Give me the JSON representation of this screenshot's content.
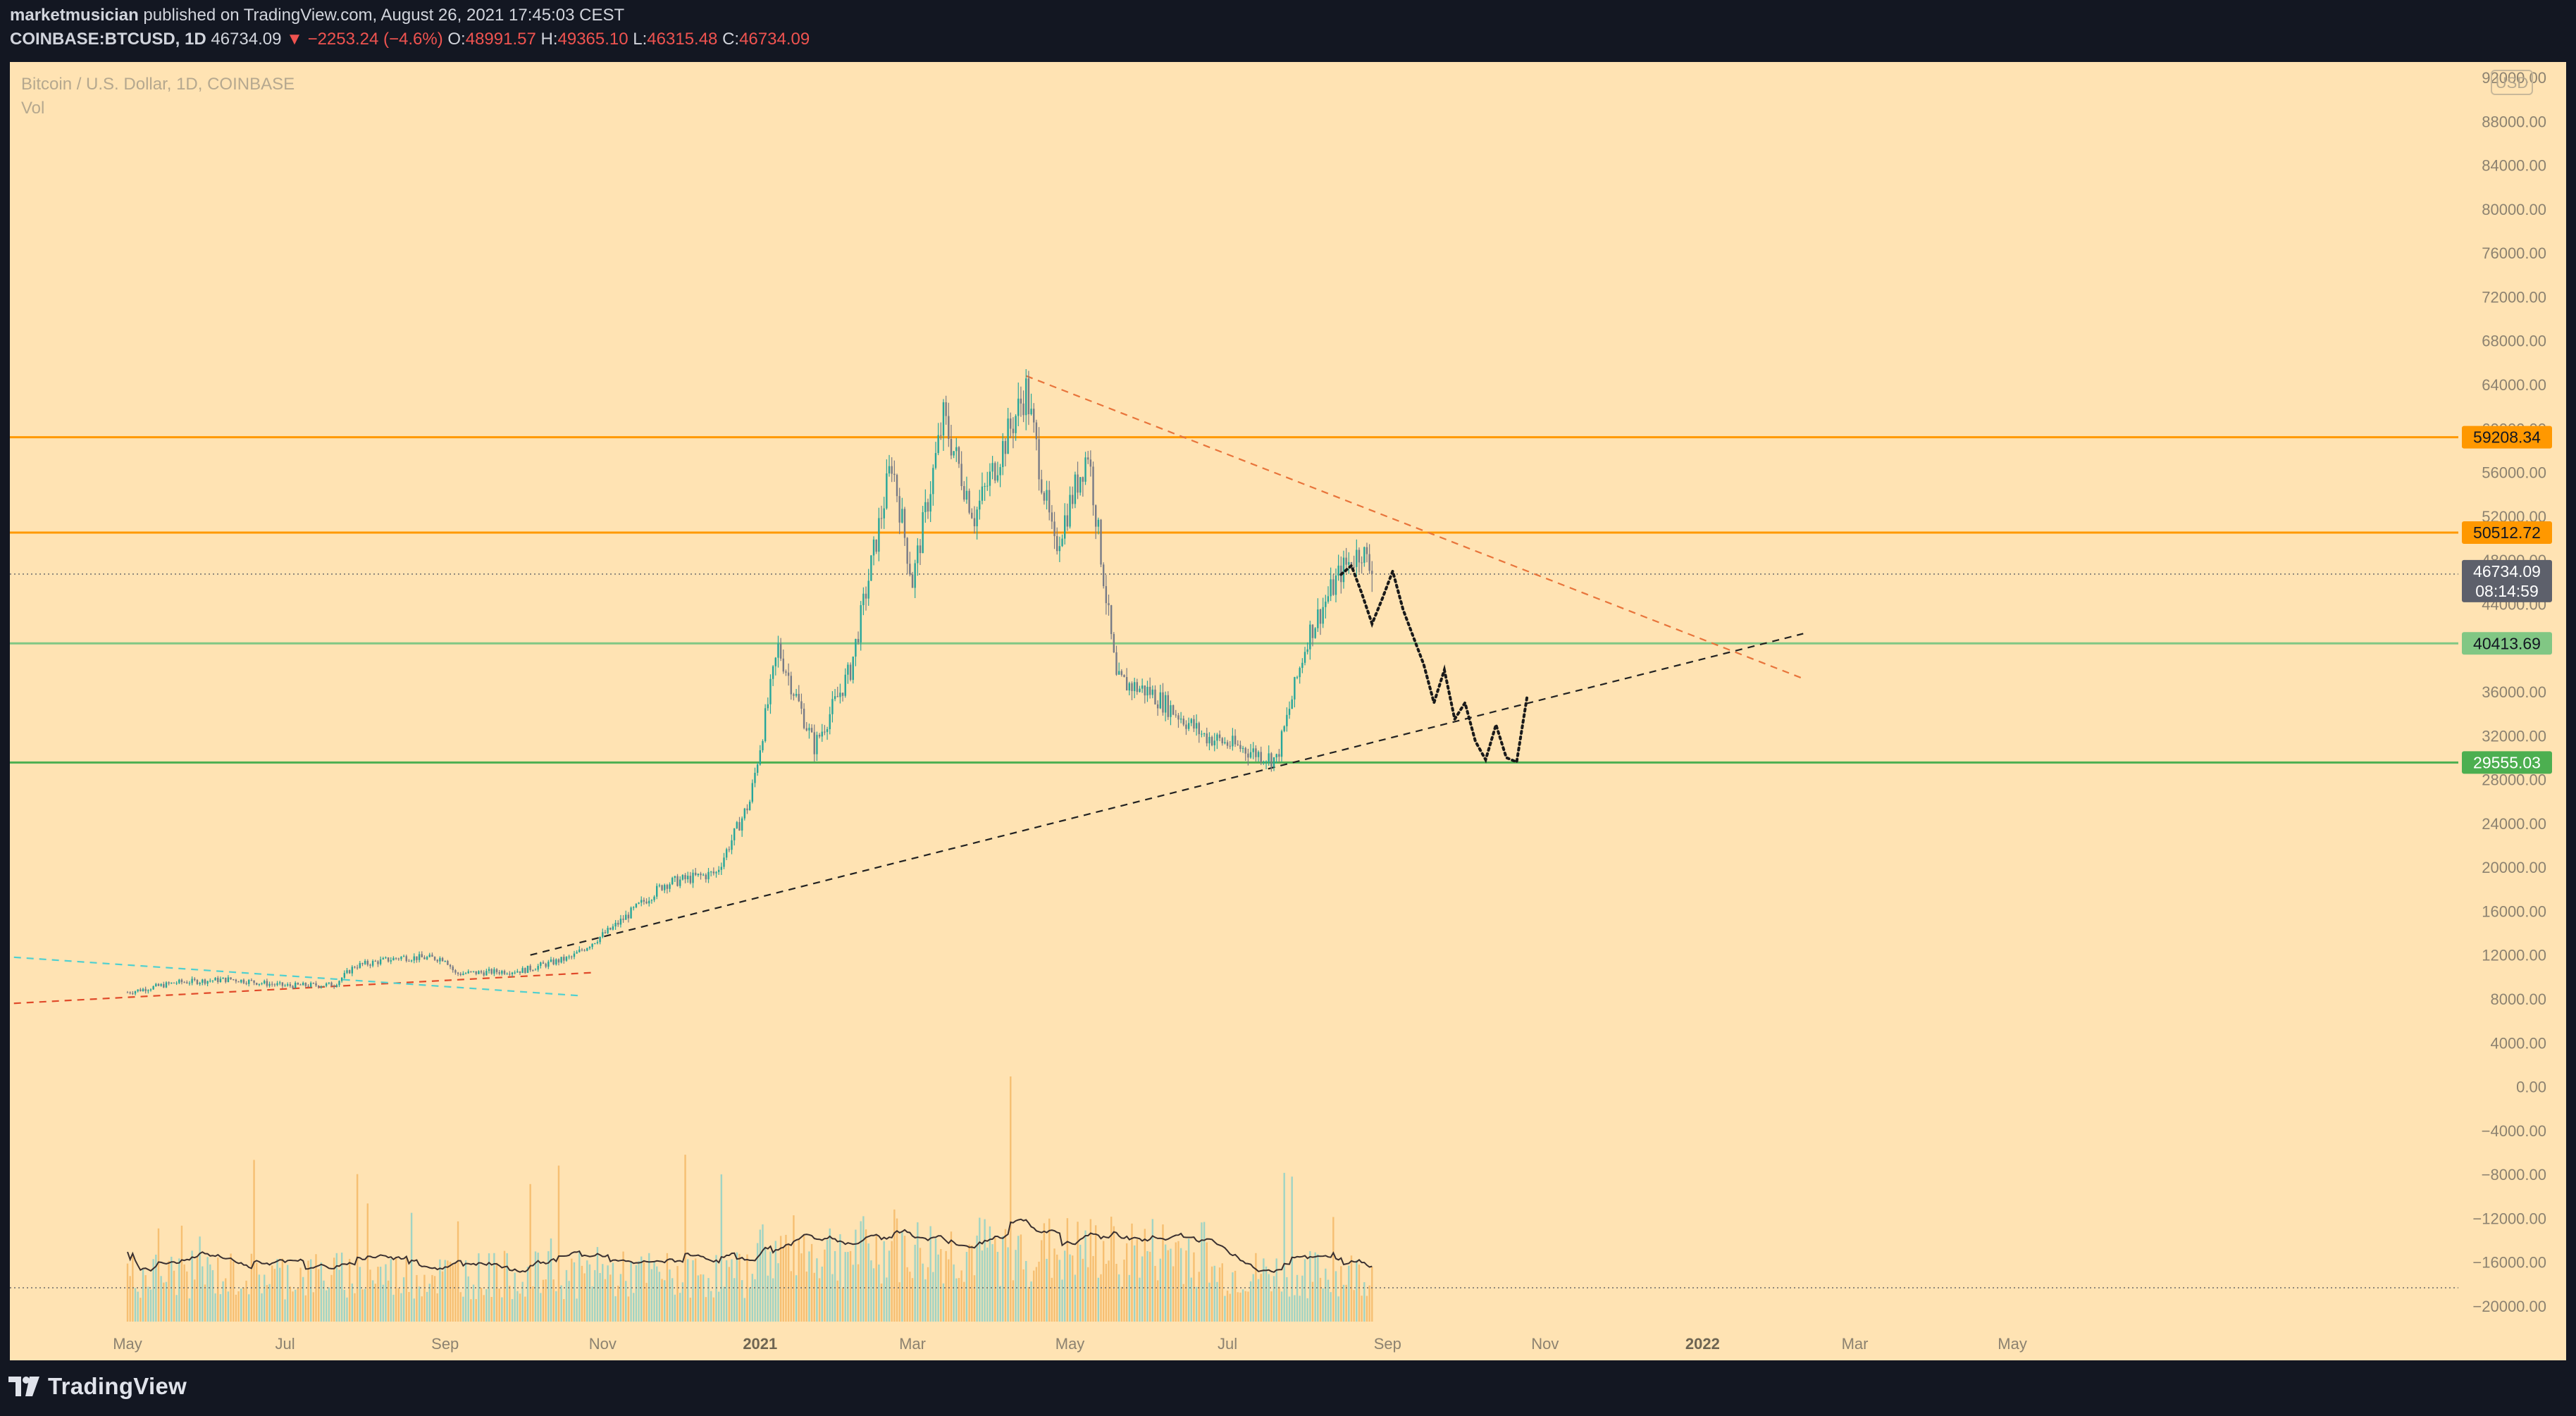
{
  "header": {
    "author": "marketmusician",
    "published": " published on TradingView.com, August 26, 2021 17:45:03 CEST",
    "symbol": "COINBASE:BTCUSD, 1D",
    "last": "46734.09",
    "change": "▼ −2253.24 (−4.6%)",
    "open_label": "O:",
    "open": "48991.57",
    "high_label": "H:",
    "high": "49365.10",
    "low_label": "L:",
    "low": "46315.48",
    "close_label": "C:",
    "close": "46734.09"
  },
  "legend": {
    "title": "Bitcoin / U.S. Dollar, 1D, COINBASE",
    "volume": "Vol"
  },
  "price_axis": {
    "currency_badge": "USD",
    "ticks": [
      "92000.00",
      "88000.00",
      "84000.00",
      "80000.00",
      "76000.00",
      "72000.00",
      "68000.00",
      "64000.00",
      "60000.00",
      "56000.00",
      "52000.00",
      "48000.00",
      "44000.00",
      "40000.00",
      "36000.00",
      "32000.00",
      "28000.00",
      "24000.00",
      "20000.00",
      "16000.00",
      "12000.00",
      "8000.00",
      "4000.00",
      "0.00",
      "−4000.00",
      "−8000.00",
      "−12000.00",
      "−16000.00",
      "−20000.00"
    ],
    "tick_values": [
      92000,
      88000,
      84000,
      80000,
      76000,
      72000,
      68000,
      64000,
      60000,
      56000,
      52000,
      48000,
      44000,
      40000,
      36000,
      32000,
      28000,
      24000,
      20000,
      16000,
      12000,
      8000,
      4000,
      0,
      -4000,
      -8000,
      -12000,
      -16000,
      -20000
    ]
  },
  "time_axis": {
    "ticks": [
      "May",
      "Jul",
      "Sep",
      "Nov",
      "2021",
      "Mar",
      "May",
      "Jul",
      "Sep",
      "Nov",
      "2022",
      "Mar",
      "May"
    ],
    "tick_days": [
      0,
      61,
      123,
      184,
      245,
      304,
      365,
      426,
      488,
      549,
      610,
      669,
      730
    ],
    "bold": [
      "2021",
      "2022"
    ]
  },
  "price_labels": [
    {
      "text": "59208.34",
      "value": 59208.34,
      "color": "#ff9800",
      "text_color": "#131722"
    },
    {
      "text": "50512.72",
      "value": 50512.72,
      "color": "#ff9800",
      "text_color": "#131722"
    },
    {
      "text": "46734.09",
      "value": 46734.09,
      "color": "#5d606b",
      "text_color": "#ffffff",
      "sub": "08:14:59"
    },
    {
      "text": "40413.69",
      "value": 40413.69,
      "color": "#81c784",
      "text_color": "#131722"
    },
    {
      "text": "29555.03",
      "value": 29555.03,
      "color": "#4caf50",
      "text_color": "#ffffff"
    }
  ],
  "colors": {
    "chart_bg": "#ffe3b3",
    "up": "#26a69a",
    "down": "#787b86",
    "resistance": "#ff9800",
    "support_light": "#81c784",
    "support": "#4caf50",
    "volume_up": "#8fd1c7",
    "volume_down": "#f5b866",
    "volume_ma": "#3a3030"
  },
  "chart_data": {
    "type": "candlestick",
    "symbol": "BTCUSD",
    "timeframe": "1D",
    "x_start": "2020-05-01",
    "ylim": [
      -20000,
      92000
    ],
    "series_keypoints": [
      [
        "2020-05-01",
        8600
      ],
      [
        "2020-05-20",
        9500
      ],
      [
        "2020-06-10",
        9800
      ],
      [
        "2020-07-01",
        9200
      ],
      [
        "2020-07-20",
        9300
      ],
      [
        "2020-07-28",
        11000
      ],
      [
        "2020-08-15",
        11800
      ],
      [
        "2020-09-01",
        11700
      ],
      [
        "2020-09-05",
        10300
      ],
      [
        "2020-10-01",
        10600
      ],
      [
        "2020-10-20",
        11800
      ],
      [
        "2020-11-05",
        14500
      ],
      [
        "2020-11-25",
        18500
      ],
      [
        "2020-12-15",
        19500
      ],
      [
        "2020-12-28",
        26000
      ],
      [
        "2021-01-08",
        40000
      ],
      [
        "2021-01-22",
        31000
      ],
      [
        "2021-02-05",
        38000
      ],
      [
        "2021-02-21",
        57000
      ],
      [
        "2021-03-01",
        46000
      ],
      [
        "2021-03-13",
        61000
      ],
      [
        "2021-03-25",
        52000
      ],
      [
        "2021-04-14",
        63500
      ],
      [
        "2021-04-25",
        49000
      ],
      [
        "2021-05-08",
        58000
      ],
      [
        "2021-05-19",
        37000
      ],
      [
        "2021-06-01",
        36000
      ],
      [
        "2021-06-22",
        32000
      ],
      [
        "2021-07-20",
        29800
      ],
      [
        "2021-08-01",
        41000
      ],
      [
        "2021-08-14",
        47000
      ],
      [
        "2021-08-22",
        49000
      ],
      [
        "2021-08-26",
        46734
      ]
    ],
    "horizontal_levels": [
      59208.34,
      50512.72,
      40413.69,
      29555.03
    ],
    "last_price": 46734.09
  }
}
